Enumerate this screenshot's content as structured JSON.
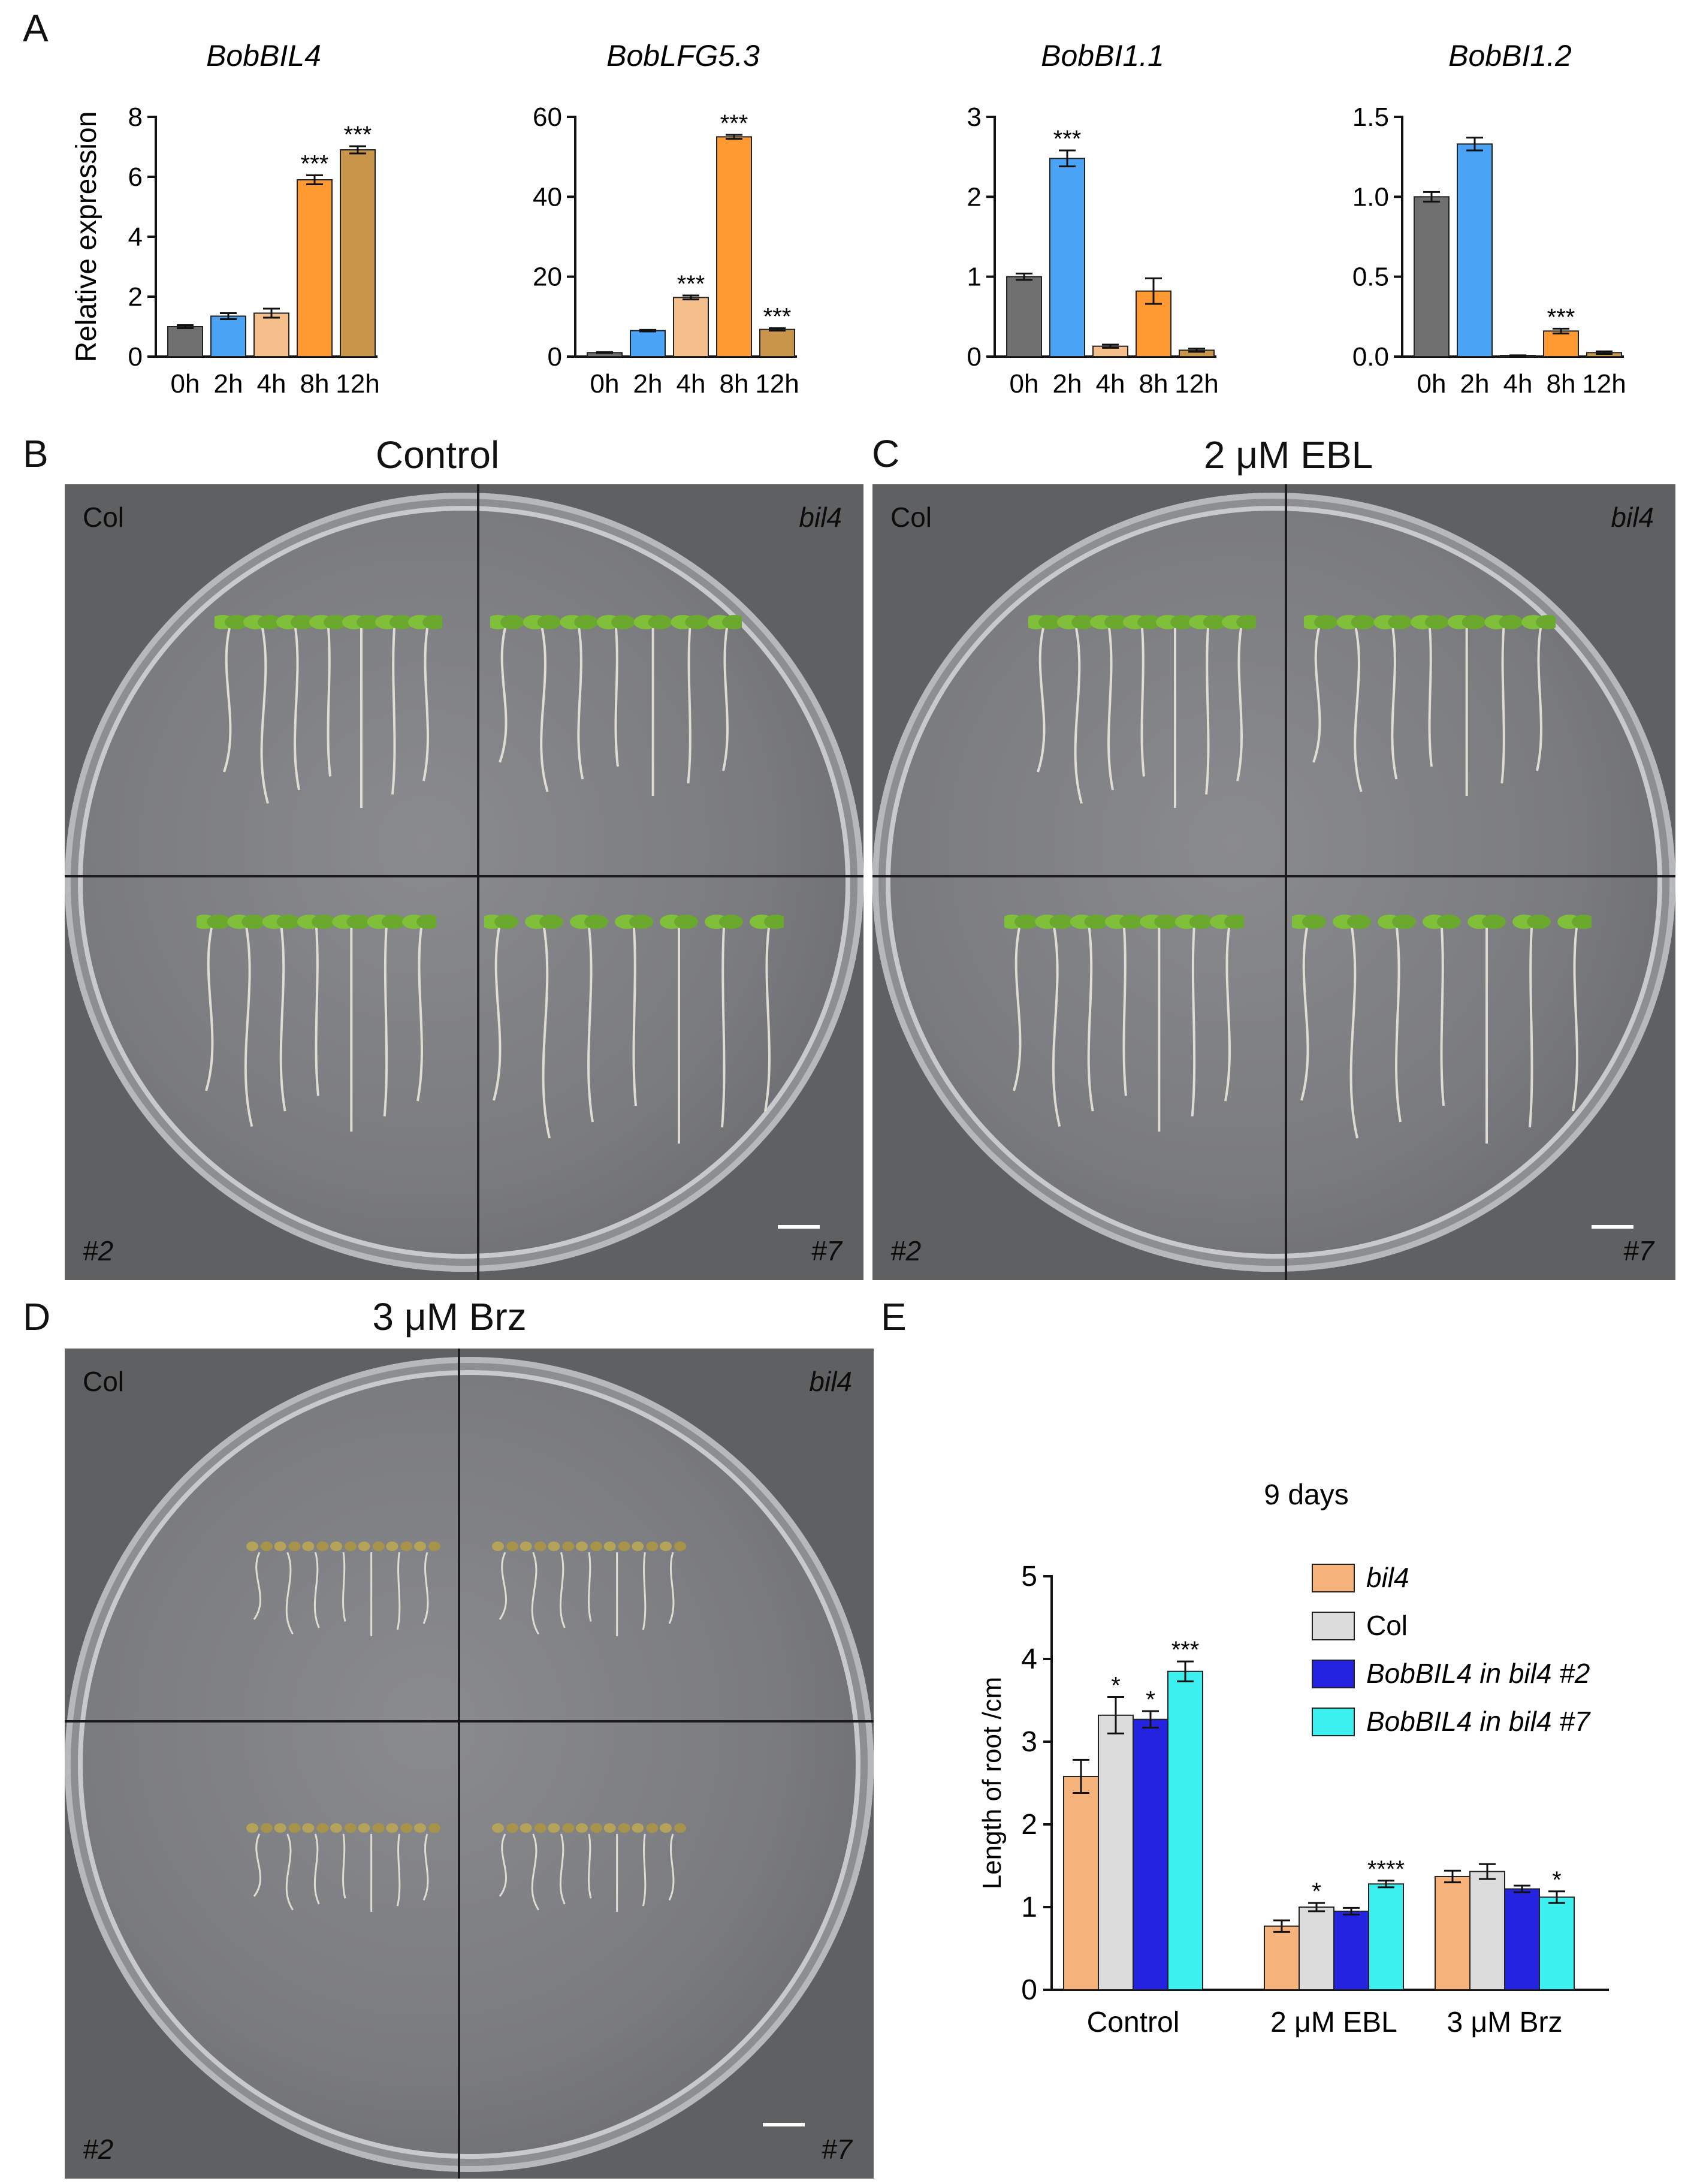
{
  "panel_letters": {
    "a": "A",
    "b": "B",
    "c": "C",
    "d": "D",
    "e": "E"
  },
  "plates": {
    "b": {
      "title": "Control",
      "tl": "Col",
      "tr": "bil4",
      "bl": "#2",
      "br": "#7"
    },
    "c": {
      "title": "2 μM EBL",
      "tl": "Col",
      "tr": "bil4",
      "bl": "#2",
      "br": "#7"
    },
    "d": {
      "title": "3 μM Brz",
      "tl": "Col",
      "tr": "bil4",
      "bl": "#2",
      "br": "#7"
    }
  },
  "colors": {
    "gray": "#6f6f6f",
    "blue": "#4aa3f5",
    "peach": "#f5bf8c",
    "orange": "#ff9a33",
    "brown": "#c9954b",
    "bil4": "#f5b27a",
    "col": "#dcdcdc",
    "bob2": "#2424e0",
    "bob7": "#3cf0f0"
  },
  "chart_data": [
    {
      "type": "bar",
      "title": "BobBIL4",
      "ylabel": "Relative expression",
      "categories": [
        "0h",
        "2h",
        "4h",
        "8h",
        "12h"
      ],
      "values": [
        1.0,
        1.35,
        1.45,
        5.9,
        6.9
      ],
      "errors": [
        0.05,
        0.1,
        0.15,
        0.15,
        0.12
      ],
      "significance": [
        "",
        "",
        "",
        "***",
        "***"
      ],
      "ylim": [
        0,
        8
      ],
      "yticks": [
        "0",
        "2",
        "4",
        "6",
        "8"
      ]
    },
    {
      "type": "bar",
      "title": "BobLFG5.3",
      "ylabel": "",
      "categories": [
        "0h",
        "2h",
        "4h",
        "8h",
        "12h"
      ],
      "values": [
        1.0,
        6.5,
        14.8,
        55.0,
        6.8
      ],
      "errors": [
        0.1,
        0.2,
        0.5,
        0.5,
        0.3
      ],
      "significance": [
        "",
        "",
        "***",
        "***",
        "***"
      ],
      "ylim": [
        0,
        60
      ],
      "yticks": [
        "0",
        "20",
        "40",
        "60"
      ]
    },
    {
      "type": "bar",
      "title": "BobBI1.1",
      "ylabel": "",
      "categories": [
        "0h",
        "2h",
        "4h",
        "8h",
        "12h"
      ],
      "values": [
        1.0,
        2.48,
        0.13,
        0.82,
        0.08
      ],
      "errors": [
        0.04,
        0.1,
        0.02,
        0.16,
        0.02
      ],
      "significance": [
        "",
        "***",
        "",
        "",
        ""
      ],
      "ylim": [
        0,
        3
      ],
      "yticks": [
        "0",
        "1",
        "2",
        "3"
      ]
    },
    {
      "type": "bar",
      "title": "BobBI1.2",
      "ylabel": "",
      "categories": [
        "0h",
        "2h",
        "4h",
        "8h",
        "12h"
      ],
      "values": [
        1.0,
        1.33,
        0.005,
        0.16,
        0.025
      ],
      "errors": [
        0.03,
        0.04,
        0.003,
        0.015,
        0.008
      ],
      "significance": [
        "",
        "",
        "",
        "***",
        ""
      ],
      "ylim": [
        0,
        1.5
      ],
      "yticks": [
        "0.0",
        "0.5",
        "1.0",
        "1.5"
      ]
    },
    {
      "type": "bar",
      "title": "9 days",
      "ylabel": "Length of root /cm",
      "categories": [
        "Control",
        "2 μM EBL",
        "3 μM Brz"
      ],
      "series": [
        {
          "name": "bil4",
          "values": [
            2.58,
            0.77,
            1.37
          ],
          "errors": [
            0.2,
            0.07,
            0.07
          ],
          "significance": [
            "",
            "",
            ""
          ]
        },
        {
          "name": "Col",
          "values": [
            3.32,
            1.0,
            1.43
          ],
          "errors": [
            0.22,
            0.05,
            0.09
          ],
          "significance": [
            "*",
            "*",
            ""
          ]
        },
        {
          "name": "BobBIL4 in bil4 #2",
          "values": [
            3.27,
            0.95,
            1.22
          ],
          "errors": [
            0.1,
            0.04,
            0.04
          ],
          "significance": [
            "*",
            "",
            ""
          ]
        },
        {
          "name": "BobBIL4 in bil4 #7",
          "values": [
            3.85,
            1.28,
            1.12
          ],
          "errors": [
            0.12,
            0.04,
            0.07
          ],
          "significance": [
            "***",
            "****",
            "*"
          ]
        }
      ],
      "ylim": [
        0,
        5
      ],
      "yticks": [
        "0",
        "1",
        "2",
        "3",
        "4",
        "5"
      ]
    }
  ]
}
